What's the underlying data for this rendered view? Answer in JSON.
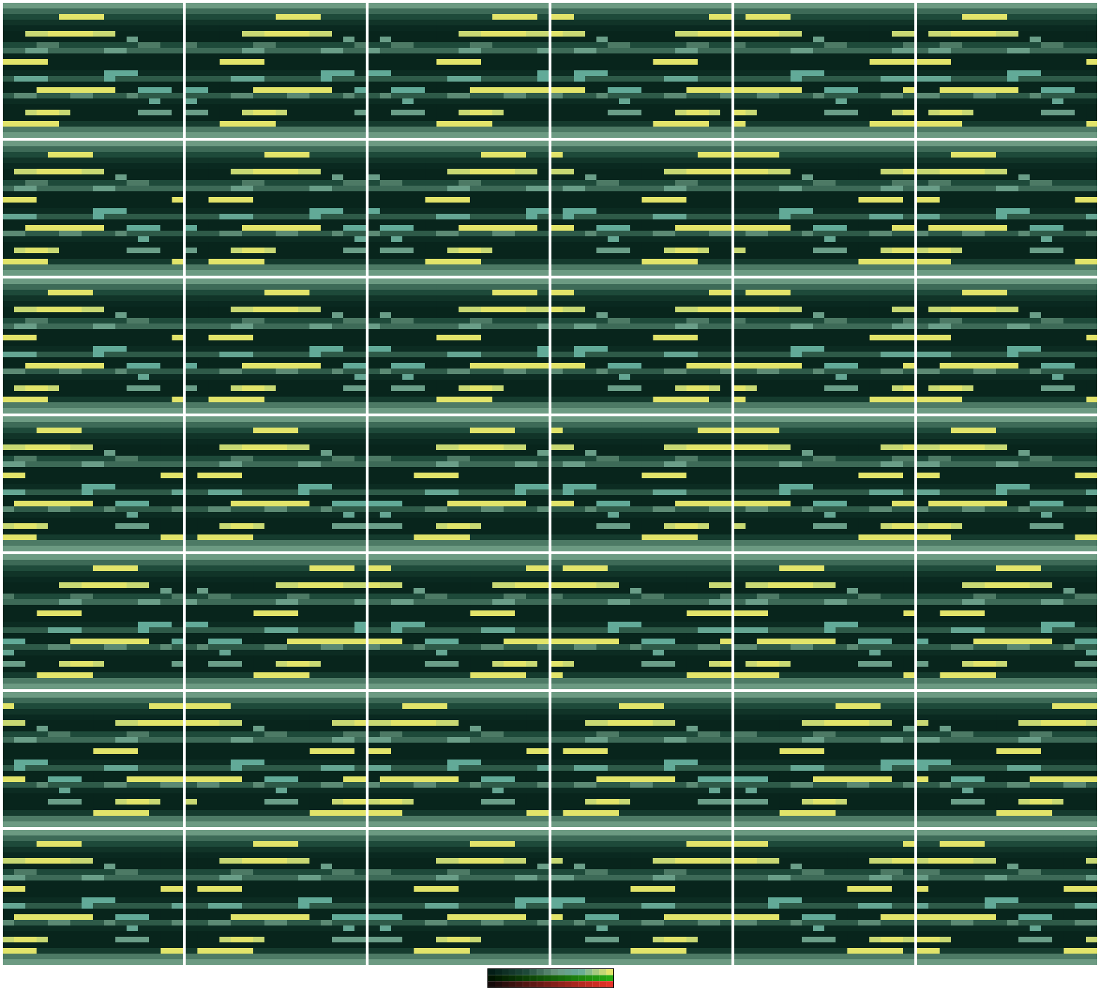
{
  "chart_data": {
    "type": "heatmap",
    "tick_labels": false,
    "color_range": [
      0,
      1
    ],
    "cells": [
      [
        0.55,
        0.55,
        0.55,
        0.55,
        0.55,
        0.55,
        0.55,
        0.55,
        0.55,
        0.55,
        0.55,
        0.55,
        0.55,
        0.55,
        0.55,
        0.55
      ],
      [
        0.4,
        0.4,
        0.4,
        0.4,
        0.4,
        0.4,
        0.4,
        0.4,
        0.4,
        0.4,
        0.4,
        0.4,
        0.4,
        0.4,
        0.4,
        0.4
      ],
      [
        0.3,
        0.3,
        0.3,
        0.3,
        0.3,
        1,
        1,
        1,
        1,
        0.3,
        0.3,
        0.3,
        0.3,
        0.3,
        0.3,
        0.3
      ],
      [
        0.15,
        0.15,
        0.15,
        0.15,
        0.15,
        0.15,
        0.15,
        0.15,
        0.15,
        0.15,
        0.15,
        0.15,
        0.15,
        0.15,
        0.15,
        0.15
      ],
      [
        0.08,
        0.08,
        0.08,
        0.08,
        0.08,
        0.08,
        0.08,
        0.08,
        0.08,
        0.08,
        0.08,
        0.08,
        0.08,
        0.08,
        0.08,
        0.08
      ],
      [
        0.05,
        0.05,
        0.95,
        0.95,
        1,
        1,
        1,
        1,
        0.95,
        0.95,
        0.05,
        0.05,
        0.05,
        0.05,
        0.05,
        0.05
      ],
      [
        0.05,
        0.05,
        0.05,
        0.05,
        0.05,
        0.05,
        0.05,
        0.05,
        0.05,
        0.05,
        0.05,
        0.6,
        0.05,
        0.05,
        0.05,
        0.05
      ],
      [
        0.3,
        0.3,
        0.3,
        0.45,
        0.45,
        0.3,
        0.3,
        0.3,
        0.3,
        0.3,
        0.3,
        0.3,
        0.45,
        0.45,
        0.3,
        0.3
      ],
      [
        0.4,
        0.4,
        0.6,
        0.6,
        0.4,
        0.4,
        0.4,
        0.4,
        0.4,
        0.6,
        0.6,
        0.4,
        0.4,
        0.4,
        0.4,
        0.4
      ],
      [
        0.05,
        0.05,
        0.05,
        0.05,
        0.05,
        0.05,
        0.05,
        0.05,
        0.05,
        0.05,
        0.05,
        0.05,
        0.05,
        0.05,
        0.05,
        0.05
      ],
      [
        1,
        1,
        1,
        1,
        0.05,
        0.05,
        0.05,
        0.05,
        0.05,
        0.05,
        0.05,
        0.05,
        0.05,
        0.05,
        0.05,
        0.05
      ],
      [
        0.05,
        0.05,
        0.05,
        0.05,
        0.05,
        0.05,
        0.05,
        0.05,
        0.05,
        0.05,
        0.05,
        0.05,
        0.05,
        0.05,
        0.05,
        0.05
      ],
      [
        0.1,
        0.1,
        0.1,
        0.1,
        0.1,
        0.1,
        0.1,
        0.1,
        0.1,
        0.75,
        0.75,
        0.75,
        0.1,
        0.1,
        0.1,
        0.1
      ],
      [
        0.35,
        0.7,
        0.7,
        0.7,
        0.35,
        0.35,
        0.35,
        0.35,
        0.35,
        0.75,
        0.35,
        0.35,
        0.35,
        0.35,
        0.35,
        0.35
      ],
      [
        0.05,
        0.05,
        0.05,
        0.05,
        0.05,
        0.05,
        0.05,
        0.05,
        0.05,
        0.05,
        0.05,
        0.05,
        0.05,
        0.05,
        0.05,
        0.05
      ],
      [
        0.05,
        0.05,
        0.05,
        1,
        1,
        1,
        1,
        1,
        1,
        1,
        0.05,
        0.05,
        0.75,
        0.75,
        0.75,
        0.05
      ],
      [
        0.35,
        0.5,
        0.5,
        0.35,
        0.35,
        0.35,
        0.5,
        0.5,
        0.35,
        0.35,
        0.35,
        0.5,
        0.35,
        0.35,
        0.35,
        0.35
      ],
      [
        0.1,
        0.1,
        0.1,
        0.1,
        0.1,
        0.1,
        0.1,
        0.1,
        0.1,
        0.1,
        0.1,
        0.1,
        0.1,
        0.7,
        0.1,
        0.1
      ],
      [
        0.05,
        0.05,
        0.05,
        0.05,
        0.05,
        0.05,
        0.05,
        0.05,
        0.05,
        0.05,
        0.05,
        0.05,
        0.05,
        0.05,
        0.05,
        0.05
      ],
      [
        0.05,
        0.05,
        0.95,
        1,
        1,
        0.95,
        0.05,
        0.05,
        0.05,
        0.05,
        0.05,
        0.05,
        0.6,
        0.6,
        0.6,
        0.05
      ],
      [
        0.05,
        0.05,
        0.05,
        0.05,
        0.05,
        0.05,
        0.05,
        0.05,
        0.05,
        0.05,
        0.05,
        0.05,
        0.05,
        0.05,
        0.05,
        0.05
      ],
      [
        1,
        1,
        1,
        1,
        1,
        0.2,
        0.2,
        0.2,
        0.2,
        0.2,
        0.2,
        0.2,
        0.2,
        0.2,
        0.2,
        0.2
      ],
      [
        0.45,
        0.45,
        0.45,
        0.45,
        0.45,
        0.45,
        0.45,
        0.45,
        0.45,
        0.45,
        0.45,
        0.45,
        0.45,
        0.45,
        0.45,
        0.45
      ],
      [
        0.55,
        0.55,
        0.55,
        0.55,
        0.55,
        0.55,
        0.55,
        0.55,
        0.55,
        0.55,
        0.55,
        0.55,
        0.55,
        0.55,
        0.55,
        0.55
      ]
    ],
    "shifts": [
      [
        0,
        3,
        6,
        9,
        12,
        15
      ],
      [
        15,
        2,
        5,
        8,
        11,
        14
      ],
      [
        15,
        2,
        6,
        9,
        12,
        15
      ],
      [
        14,
        1,
        4,
        8,
        11,
        14
      ],
      [
        3,
        6,
        9,
        12,
        15,
        2
      ],
      [
        8,
        11,
        14,
        1,
        4,
        7
      ],
      [
        14,
        1,
        4,
        7,
        10,
        13
      ]
    ]
  }
}
